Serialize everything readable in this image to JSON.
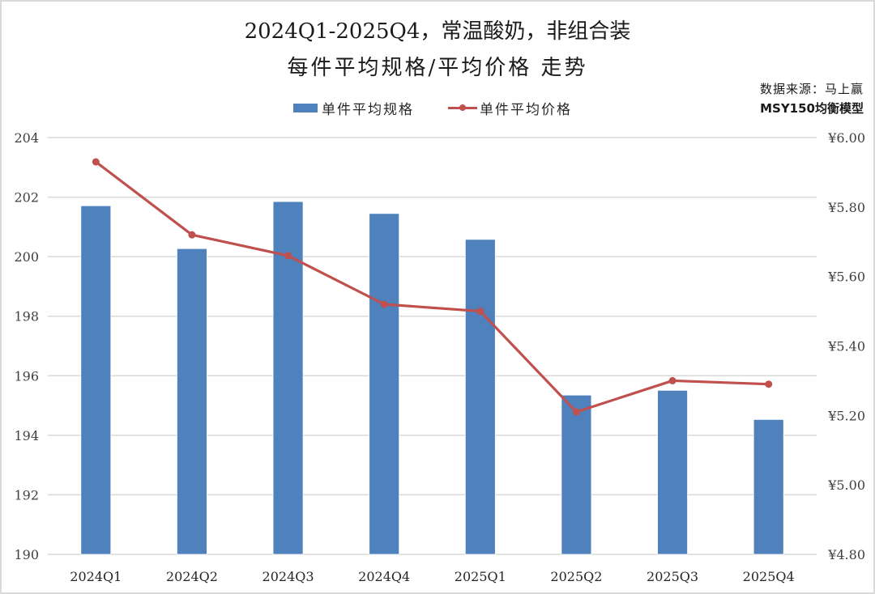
{
  "title": {
    "line1": "2024Q1-2025Q4，常温酸奶，非组合装",
    "line2": "每件平均规格/平均价格 走势"
  },
  "source": {
    "line1": "数据来源：马上赢",
    "line2": "MSY150均衡模型"
  },
  "legend": {
    "bar_label": "单件平均规格",
    "line_label": "单件平均价格"
  },
  "colors": {
    "bar": "#4f81bd",
    "line": "#c0504d",
    "grid": "#d9d9d9",
    "axis_text": "#404040"
  },
  "chart_data": {
    "type": "bar+line",
    "title": "2024Q1-2025Q4，常温酸奶，非组合装 每件平均规格/平均价格 走势",
    "categories": [
      "2024Q1",
      "2024Q2",
      "2024Q3",
      "2024Q4",
      "2025Q1",
      "2025Q2",
      "2025Q3",
      "2025Q4"
    ],
    "series": [
      {
        "name": "单件平均规格",
        "type": "bar",
        "axis": "left",
        "values": [
          201.71,
          200.27,
          201.85,
          201.45,
          200.58,
          195.35,
          195.51,
          194.53
        ]
      },
      {
        "name": "单件平均价格",
        "type": "line",
        "axis": "right",
        "values": [
          5.93,
          5.72,
          5.66,
          5.52,
          5.5,
          5.21,
          5.3,
          5.29
        ]
      }
    ],
    "left_axis": {
      "ylim": [
        190,
        204
      ],
      "ticks": [
        190,
        192,
        194,
        196,
        198,
        200,
        202,
        204
      ],
      "tick_labels": [
        "190",
        "192",
        "194",
        "196",
        "198",
        "200",
        "202",
        "204"
      ]
    },
    "right_axis": {
      "ylim": [
        4.8,
        6.0
      ],
      "ticks": [
        4.8,
        5.0,
        5.2,
        5.4,
        5.6,
        5.8,
        6.0
      ],
      "tick_labels": [
        "¥4.80",
        "¥5.00",
        "¥5.20",
        "¥5.40",
        "¥5.60",
        "¥5.80",
        "¥6.00"
      ]
    },
    "xlabel": "",
    "ylabel": "",
    "grid": true,
    "legend_position": "top"
  }
}
